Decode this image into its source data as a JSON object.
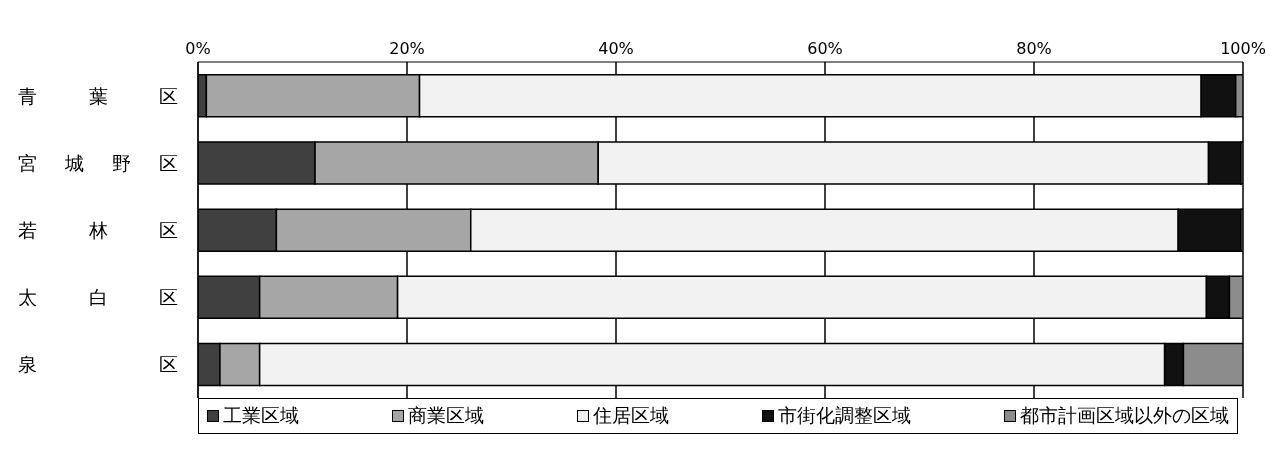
{
  "chart_data": {
    "type": "bar",
    "orientation": "horizontal",
    "stacked": true,
    "categories": [
      "青　葉　区",
      "宮城野区",
      "若　林　区",
      "太　白　区",
      "泉　区"
    ],
    "series": [
      {
        "name": "工業区域",
        "color": "#404040",
        "values": [
          0.8,
          11.2,
          7.5,
          5.9,
          2.1
        ]
      },
      {
        "name": "商業区域",
        "color": "#a6a6a6",
        "values": [
          20.4,
          27.1,
          18.6,
          13.2,
          3.8
        ]
      },
      {
        "name": "住居区域",
        "color": "#f2f2f2",
        "values": [
          74.8,
          58.4,
          67.7,
          77.4,
          86.6
        ]
      },
      {
        "name": "市街化調整区域",
        "color": "#111111",
        "values": [
          3.3,
          3.1,
          6.0,
          2.2,
          1.8
        ]
      },
      {
        "name": "都市計画区域以外の区域",
        "color": "#8c8c8c",
        "values": [
          0.7,
          0.2,
          0.2,
          1.3,
          5.7
        ]
      }
    ],
    "xlim": [
      0,
      100
    ],
    "xticks": [
      {
        "value": 0,
        "label": "0%"
      },
      {
        "value": 20,
        "label": "20%"
      },
      {
        "value": 40,
        "label": "40%"
      },
      {
        "value": 60,
        "label": "60%"
      },
      {
        "value": 80,
        "label": "80%"
      },
      {
        "value": 100,
        "label": "100%"
      }
    ],
    "grid": "x",
    "legend": "bottom"
  }
}
